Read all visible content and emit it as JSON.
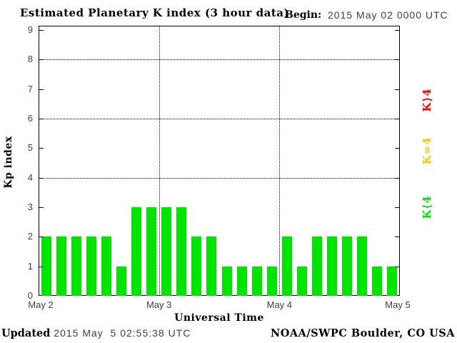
{
  "header": {
    "title": "Estimated Planetary K index (3 hour data)",
    "begin_label": "Begin:",
    "begin_value": "2015 May 02 0000 UTC"
  },
  "footer": {
    "updated_label": "Updated",
    "updated_value": " 2015 May  5 02:55:38 UTC",
    "source": "NOAA/SWPC Boulder, CO USA"
  },
  "chart_data": {
    "type": "bar",
    "title": "Estimated Planetary K index (3 hour data)",
    "begin": "2015 May 02 0000 UTC",
    "interval_hours": 3,
    "values": [
      2,
      2,
      2,
      2,
      2,
      1,
      3,
      3,
      3,
      3,
      2,
      2,
      1,
      1,
      1,
      1,
      2,
      1,
      2,
      2,
      2,
      2,
      1,
      1
    ],
    "days": [
      {
        "label": "May 2",
        "values": [
          2,
          2,
          2,
          2,
          2,
          1,
          3,
          3
        ]
      },
      {
        "label": "May 3",
        "values": [
          3,
          3,
          2,
          2,
          1,
          1,
          1,
          1
        ]
      },
      {
        "label": "May 4",
        "values": [
          2,
          1,
          2,
          2,
          2,
          2,
          1,
          1
        ]
      }
    ],
    "x_tick_labels": [
      "May 2",
      "May 3",
      "May 4",
      "May 5"
    ],
    "xlabel": "Universal Time",
    "ylabel": "Kp index",
    "ylim": [
      0,
      9
    ],
    "yticks": [
      0,
      1,
      2,
      3,
      4,
      5,
      6,
      7,
      8,
      9
    ],
    "grid_y_values": [
      4,
      6,
      8
    ],
    "grid": "dotted horizontal at 4/6/8, dotted vertical at day boundaries",
    "bar_color": "#00e400",
    "legend_position": "right, rotated 90deg",
    "legend": [
      {
        "id": "high",
        "label": "K⟩4",
        "color": "#ff0000"
      },
      {
        "id": "med",
        "label": "K=4",
        "color": "#ffc800"
      },
      {
        "id": "low",
        "label": "K⟨4",
        "color": "#00e400"
      }
    ]
  }
}
